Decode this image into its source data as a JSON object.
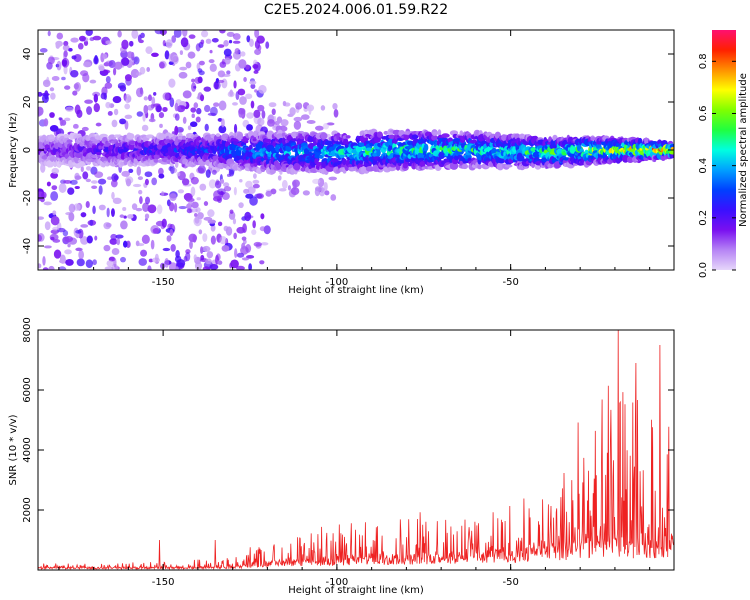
{
  "title": "C2E5.2024.006.01.59.R22",
  "chart_data": [
    {
      "type": "heatmap",
      "xlabel": "Height of straight line (km)",
      "ylabel": "Frequency (Hz)",
      "xlim": [
        -186,
        -3
      ],
      "ylim": [
        -50,
        50
      ],
      "xticks": [
        "-150",
        "-100",
        "-50"
      ],
      "yticks": [
        "-40",
        "-20",
        "0",
        "20",
        "40"
      ],
      "colorbar": {
        "label": "Normalized spectral amplitude",
        "range": [
          0,
          0.92
        ],
        "ticks": [
          "0.0",
          "0.2",
          "0.4",
          "0.6",
          "0.8"
        ],
        "colors": [
          "#e6d6fa",
          "#b684f5",
          "#7a10f0",
          "#3a10ff",
          "#0040ff",
          "#00a0ff",
          "#00ffe0",
          "#20ff40",
          "#80ff00",
          "#ffff00",
          "#ff9000",
          "#ff2000",
          "#ff1070"
        ]
      },
      "band": {
        "x": [
          -186,
          -140,
          -120,
          -100,
          -80,
          -60,
          -40,
          -20,
          -3
        ],
        "center_hz": [
          0,
          0,
          -1,
          -1,
          0,
          0,
          -1,
          0,
          0
        ],
        "halfwidth_hz": [
          6,
          6,
          8,
          8,
          8,
          7,
          6,
          5,
          3
        ],
        "peak_amplitude": [
          0.15,
          0.3,
          0.4,
          0.45,
          0.5,
          0.5,
          0.55,
          0.65,
          0.85
        ]
      },
      "scatter_regions": [
        {
          "x": [
            -186,
            -120
          ],
          "y": [
            -50,
            50
          ],
          "amplitude": 0.15
        },
        {
          "x": [
            -120,
            -100
          ],
          "y": [
            -20,
            20
          ],
          "amplitude": 0.08
        }
      ],
      "grid": false
    },
    {
      "type": "line",
      "xlabel": "Height of straight line (km)",
      "ylabel": "SNR (10 * v/v)",
      "xlim": [
        -186,
        -3
      ],
      "ylim": [
        0,
        8000
      ],
      "xticks": [
        "-150",
        "-100",
        "-50"
      ],
      "yticks": [
        "2000",
        "4000",
        "6000",
        "8000"
      ],
      "color": "#ee2222",
      "envelope": {
        "x": [
          -186,
          -150,
          -140,
          -130,
          -120,
          -110,
          -100,
          -90,
          -80,
          -70,
          -60,
          -50,
          -40,
          -35,
          -30,
          -25,
          -20,
          -15,
          -10,
          -5,
          -3
        ],
        "y_base": [
          80,
          80,
          90,
          100,
          250,
          300,
          350,
          400,
          450,
          500,
          550,
          600,
          700,
          800,
          900,
          1000,
          1000,
          900,
          900,
          1000,
          1000
        ],
        "y_peak": [
          200,
          300,
          400,
          500,
          1000,
          1300,
          1500,
          1700,
          1900,
          2000,
          2200,
          2300,
          3000,
          3800,
          5000,
          5800,
          6500,
          6000,
          5500,
          5800,
          6000
        ]
      },
      "spikes": [
        {
          "x": -151,
          "y": 1000
        },
        {
          "x": -135,
          "y": 1000
        },
        {
          "x": -19,
          "y": 8000
        },
        {
          "x": -14,
          "y": 6900
        },
        {
          "x": -7,
          "y": 7500
        }
      ],
      "grid": false
    }
  ]
}
